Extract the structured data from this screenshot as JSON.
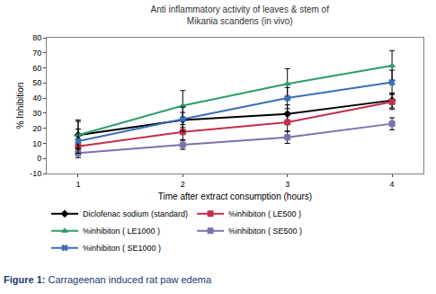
{
  "chart_data": {
    "type": "line",
    "title": "Anti inflammatory activity of leaves & stem of\nMikania scandens (in vivo)",
    "x_label": "Time after extract consumption (hours)",
    "y_label": "% Inhibition",
    "x": [
      1,
      2,
      3,
      4
    ],
    "series": [
      {
        "name": "Diclofenac sodium (standard)",
        "color": "#000000",
        "marker": "diamond",
        "line_style": "solid",
        "values": [
          15.5,
          25.5,
          29.5,
          38.5
        ],
        "error": [
          9,
          5,
          6,
          5
        ]
      },
      {
        "name": "%inhibiton ( LE500 )",
        "color": "#c0304d",
        "marker": "square",
        "line_style": "solid",
        "values": [
          8,
          17.5,
          24,
          37.5
        ],
        "error": [
          5,
          5,
          6,
          5
        ]
      },
      {
        "name": "%inhibiton ( LE1000 )",
        "color": "#2e9e6b",
        "marker": "triangle-up",
        "line_style": "solid",
        "values": [
          15.5,
          35,
          49.5,
          61.5
        ],
        "error": [
          10,
          10,
          10,
          10
        ]
      },
      {
        "name": "%inhibiton ( SE500 )",
        "color": "#7f6fb0",
        "marker": "square",
        "line_style": "solid",
        "values": [
          3.5,
          9,
          14,
          23
        ],
        "error": [
          3,
          3,
          4,
          4
        ]
      },
      {
        "name": "%inhibiton ( SE1000 )",
        "color": "#3b6fb6",
        "marker": "x",
        "line_style": "solid",
        "values": [
          11.5,
          26,
          40,
          50.5
        ],
        "error": [
          8,
          8,
          7,
          8
        ]
      }
    ],
    "xlim": [
      0.7,
      4.3
    ],
    "xticks": [
      1,
      2,
      3,
      4
    ],
    "ylim": [
      -10,
      80
    ],
    "yticks": [
      -10,
      0,
      10,
      20,
      30,
      40,
      50,
      60,
      70,
      80
    ],
    "grid": false,
    "legend": "bottom"
  },
  "caption": {
    "label": "Figure 1:",
    "text": "Carrageenan induced rat paw edema"
  }
}
